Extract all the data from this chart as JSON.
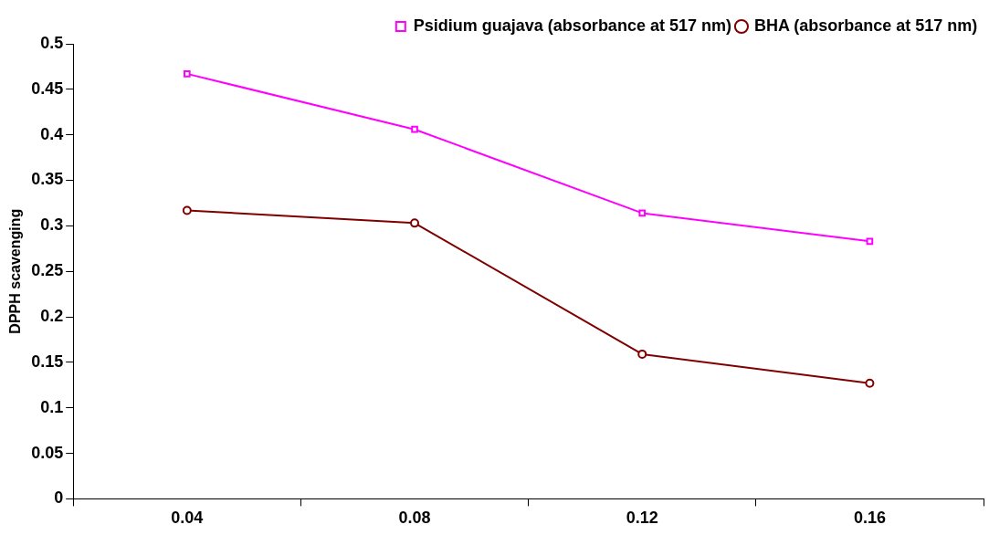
{
  "chart_data": {
    "type": "line",
    "ylabel": "DPPH scavenging",
    "categories": [
      "0.04",
      "0.08",
      "0.12",
      "0.16"
    ],
    "series": [
      {
        "name": "Psidium guajava (absorbance at 517 nm)",
        "color": "#ff00ff",
        "marker": "square",
        "values": [
          0.467,
          0.406,
          0.314,
          0.283
        ]
      },
      {
        "name": "BHA (absorbance at 517 nm)",
        "color": "#800000",
        "marker": "circle",
        "values": [
          0.317,
          0.303,
          0.159,
          0.127
        ]
      }
    ],
    "ylim": [
      0,
      0.5
    ],
    "yticks": [
      0,
      0.05,
      0.1,
      0.15,
      0.2,
      0.25,
      0.3,
      0.35,
      0.4,
      0.45,
      0.5
    ],
    "grid": false,
    "legend": "top right",
    "line_style": "solid"
  }
}
